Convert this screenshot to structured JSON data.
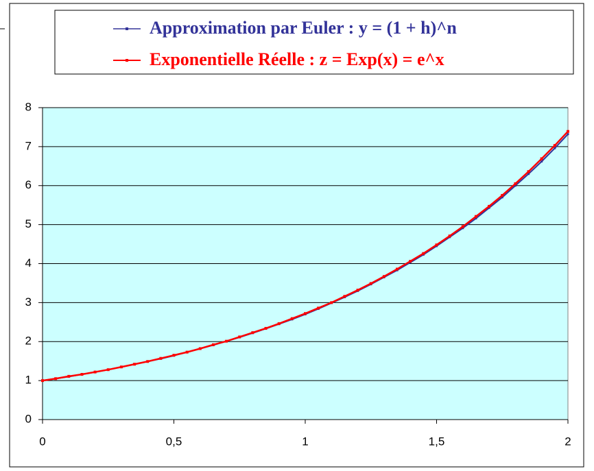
{
  "chart_data": {
    "type": "line",
    "x": [
      0,
      0.05,
      0.1,
      0.15,
      0.2,
      0.25,
      0.3,
      0.35,
      0.4,
      0.45,
      0.5,
      0.55,
      0.6,
      0.65,
      0.7,
      0.75,
      0.8,
      0.85,
      0.9,
      0.95,
      1,
      1.05,
      1.1,
      1.15,
      1.2,
      1.25,
      1.3,
      1.35,
      1.4,
      1.45,
      1.5,
      1.55,
      1.6,
      1.65,
      1.7,
      1.75,
      1.8,
      1.85,
      1.9,
      1.95,
      2
    ],
    "series": [
      {
        "name": "Approximation par Euler : y = (1 + h)^n",
        "color": "#333399",
        "values": [
          1,
          1.05,
          1.1,
          1.16,
          1.22,
          1.28,
          1.35,
          1.42,
          1.49,
          1.56,
          1.64,
          1.73,
          1.82,
          1.91,
          2.01,
          2.11,
          2.22,
          2.33,
          2.45,
          2.57,
          2.7,
          2.84,
          2.99,
          3.14,
          3.3,
          3.47,
          3.65,
          3.83,
          4.03,
          4.23,
          4.45,
          4.68,
          4.91,
          5.16,
          5.43,
          5.7,
          6.0,
          6.3,
          6.62,
          6.96,
          7.32
        ]
      },
      {
        "name": "Exponentielle Réelle : z = Exp(x) = e^x",
        "color": "#ff0000",
        "values": [
          1,
          1.05,
          1.11,
          1.16,
          1.22,
          1.28,
          1.35,
          1.42,
          1.49,
          1.57,
          1.65,
          1.73,
          1.82,
          1.92,
          2.01,
          2.12,
          2.23,
          2.34,
          2.46,
          2.59,
          2.72,
          2.86,
          3.0,
          3.16,
          3.32,
          3.49,
          3.67,
          3.86,
          4.06,
          4.26,
          4.48,
          4.71,
          4.95,
          5.21,
          5.47,
          5.75,
          6.05,
          6.36,
          6.69,
          7.03,
          7.39
        ]
      }
    ],
    "xlim": [
      0,
      2
    ],
    "xticks": [
      0,
      {
        "value": 0.5,
        "label": "0,5"
      },
      1,
      {
        "value": 1.5,
        "label": "1,5"
      },
      2
    ],
    "ylim": [
      0,
      8
    ],
    "yticks": [
      0,
      1,
      2,
      3,
      4,
      5,
      6,
      7,
      8
    ],
    "grid": true,
    "legend": "top",
    "background": "#ccffff"
  }
}
